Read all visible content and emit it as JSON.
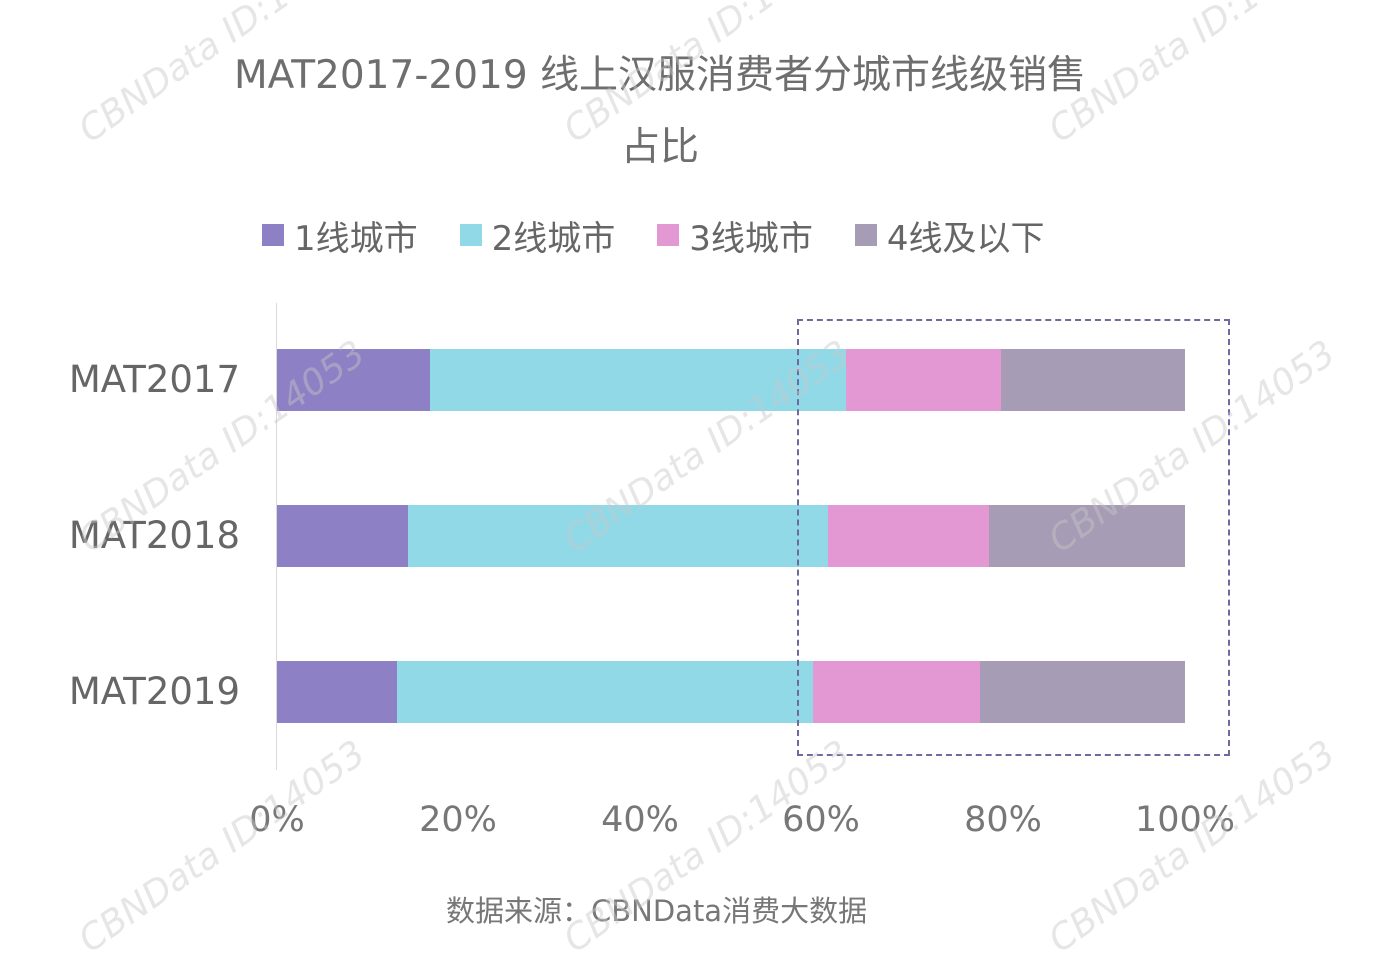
{
  "chart_data": {
    "type": "bar",
    "orientation": "horizontal",
    "stacked": "percent",
    "title": "MAT2017-2019 线上汉服消费者分城市线级销售占比",
    "title_lines": [
      "MAT2017-2019 线上汉服消费者分城市线级销售",
      "占比"
    ],
    "xlabel": "",
    "ylabel": "",
    "categories": [
      "MAT2017",
      "MAT2018",
      "MAT2019"
    ],
    "series": [
      {
        "name": "1线城市",
        "color": "#8d80c4",
        "values": [
          16.9,
          14.4,
          13.2
        ]
      },
      {
        "name": "2线城市",
        "color": "#92d9e8",
        "values": [
          45.8,
          46.3,
          45.8
        ]
      },
      {
        "name": "3线城市",
        "color": "#e398d3",
        "values": [
          17.0,
          17.7,
          18.4
        ]
      },
      {
        "name": "4线及以下",
        "color": "#a69cb5",
        "values": [
          20.3,
          21.6,
          22.6
        ]
      }
    ],
    "xlim": [
      0,
      100
    ],
    "xticks": [
      "0%",
      "20%",
      "40%",
      "60%",
      "80%",
      "100%"
    ],
    "legend_position": "top",
    "grid": false,
    "annotation": "dashed box highlighting 3线城市 and 4线及以下 segments",
    "source": "数据来源：CBNData消费大数据"
  },
  "watermark": "CBNData ID:14053"
}
